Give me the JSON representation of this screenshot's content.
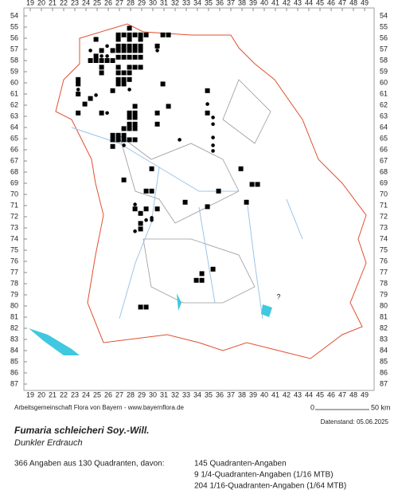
{
  "map": {
    "columns": [
      19,
      20,
      21,
      22,
      23,
      24,
      25,
      26,
      27,
      28,
      29,
      30,
      31,
      32,
      33,
      34,
      35,
      36,
      37,
      38,
      39,
      40,
      41,
      42,
      43,
      44,
      45,
      46,
      47,
      48,
      49
    ],
    "rows": [
      54,
      55,
      56,
      57,
      58,
      59,
      60,
      61,
      62,
      63,
      64,
      65,
      66,
      67,
      68,
      69,
      70,
      71,
      72,
      73,
      74,
      75,
      76,
      77,
      78,
      79,
      80,
      81,
      82,
      83,
      84,
      85,
      86,
      87
    ],
    "squares": [
      [
        27.9,
        55.1
      ],
      [
        26.9,
        55.7
      ],
      [
        27.4,
        55.7
      ],
      [
        27.9,
        55.7
      ],
      [
        28.4,
        55.7
      ],
      [
        28.9,
        55.7
      ],
      [
        29.4,
        55.7
      ],
      [
        30.9,
        55.7
      ],
      [
        31.4,
        55.7
      ],
      [
        24.9,
        56.1
      ],
      [
        26.9,
        56.1
      ],
      [
        27.9,
        56.1
      ],
      [
        28.9,
        56.1
      ],
      [
        26.9,
        56.7
      ],
      [
        27.4,
        56.7
      ],
      [
        27.9,
        56.7
      ],
      [
        28.4,
        56.7
      ],
      [
        28.9,
        56.7
      ],
      [
        30.4,
        56.7
      ],
      [
        25.4,
        57.1
      ],
      [
        26.4,
        57.1
      ],
      [
        26.9,
        57.1
      ],
      [
        27.4,
        57.1
      ],
      [
        27.9,
        57.1
      ],
      [
        28.4,
        57.1
      ],
      [
        28.9,
        57.1
      ],
      [
        24.9,
        57.6
      ],
      [
        26.9,
        57.7
      ],
      [
        27.4,
        57.7
      ],
      [
        27.9,
        57.7
      ],
      [
        28.4,
        57.7
      ],
      [
        28.9,
        57.7
      ],
      [
        24.4,
        58.0
      ],
      [
        24.9,
        58.0
      ],
      [
        25.4,
        58.0
      ],
      [
        25.9,
        58.0
      ],
      [
        26.4,
        58.0
      ],
      [
        25.4,
        58.6
      ],
      [
        26.9,
        58.6
      ],
      [
        27.9,
        58.6
      ],
      [
        28.4,
        58.6
      ],
      [
        28.9,
        58.6
      ],
      [
        25.4,
        59.1
      ],
      [
        26.9,
        59.1
      ],
      [
        27.4,
        59.1
      ],
      [
        27.9,
        59.1
      ],
      [
        23.3,
        59.7
      ],
      [
        26.9,
        59.7
      ],
      [
        27.4,
        59.7
      ],
      [
        27.9,
        59.7
      ],
      [
        23.3,
        60.1
      ],
      [
        26.9,
        60.1
      ],
      [
        27.4,
        60.1
      ],
      [
        30.9,
        60.1
      ],
      [
        26.4,
        60.7
      ],
      [
        34.9,
        60.7
      ],
      [
        23.3,
        61.0
      ],
      [
        24.4,
        61.4
      ],
      [
        23.9,
        61.9
      ],
      [
        28.4,
        62.1
      ],
      [
        31.4,
        62.1
      ],
      [
        23.3,
        62.7
      ],
      [
        25.4,
        62.7
      ],
      [
        27.9,
        62.7
      ],
      [
        28.4,
        62.7
      ],
      [
        30.4,
        62.7
      ],
      [
        27.9,
        63.1
      ],
      [
        28.4,
        63.1
      ],
      [
        27.9,
        63.7
      ],
      [
        28.4,
        63.7
      ],
      [
        30.4,
        63.7
      ],
      [
        34.9,
        62.7
      ],
      [
        27.4,
        64.1
      ],
      [
        27.9,
        64.1
      ],
      [
        28.4,
        64.1
      ],
      [
        26.9,
        64.7
      ],
      [
        27.4,
        64.7
      ],
      [
        26.4,
        64.7
      ],
      [
        26.4,
        65.1
      ],
      [
        26.9,
        65.1
      ],
      [
        27.4,
        65.1
      ],
      [
        27.9,
        65.1
      ],
      [
        28.4,
        65.1
      ],
      [
        26.4,
        65.7
      ],
      [
        27.4,
        68.7
      ],
      [
        29.9,
        67.7
      ],
      [
        29.4,
        69.7
      ],
      [
        29.9,
        69.7
      ],
      [
        37.9,
        67.7
      ],
      [
        38.9,
        69.1
      ],
      [
        39.4,
        69.1
      ],
      [
        38.4,
        70.7
      ],
      [
        28.4,
        71.3
      ],
      [
        29.4,
        71.3
      ],
      [
        28.9,
        71.7
      ],
      [
        30.4,
        71.3
      ],
      [
        32.9,
        70.7
      ],
      [
        34.9,
        71.1
      ],
      [
        35.9,
        69.7
      ],
      [
        28.9,
        72.6
      ],
      [
        28.9,
        73.1
      ],
      [
        35.4,
        76.7
      ],
      [
        34.4,
        77.1
      ],
      [
        33.9,
        77.7
      ],
      [
        34.4,
        77.7
      ],
      [
        28.9,
        80.1
      ],
      [
        29.4,
        80.1
      ]
    ],
    "dots": [
      [
        24.4,
        57.1
      ],
      [
        25.4,
        57.6
      ],
      [
        25.9,
        57.6
      ],
      [
        25.9,
        56.7
      ],
      [
        30.4,
        57.1
      ],
      [
        23.3,
        60.6
      ],
      [
        24.9,
        61.1
      ],
      [
        25.9,
        62.7
      ],
      [
        34.9,
        61.9
      ],
      [
        35.4,
        63.1
      ],
      [
        35.4,
        63.7
      ],
      [
        35.4,
        64.9
      ],
      [
        35.4,
        65.6
      ],
      [
        35.4,
        66.1
      ],
      [
        32.4,
        65.1
      ],
      [
        29.4,
        72.3
      ],
      [
        29.9,
        72.3
      ],
      [
        27.9,
        60.6
      ],
      [
        28.4,
        70.9
      ],
      [
        28.4,
        73.3
      ],
      [
        29.9,
        72.1
      ],
      [
        27.4,
        65.6
      ]
    ],
    "question_mark": "?",
    "credit": "Arbeitsgemeinschaft Flora von Bayern - www.bayernflora.de",
    "scale_start": "0",
    "scale_end": "50 km",
    "date": "Datenstand: 05.06.2025",
    "species": "Fumaria schleicheri Soy.-Will.",
    "common_name": "Dunkler Erdrauch",
    "summary": "366 Angaben aus 130 Quadranten, davon:",
    "breakdown": [
      "145 Quadranten-Angaben",
      "9 1/4-Quadranten-Angaben (1/16 MTB)",
      "204 1/16-Quadranten-Angaben (1/64 MTB)"
    ]
  }
}
